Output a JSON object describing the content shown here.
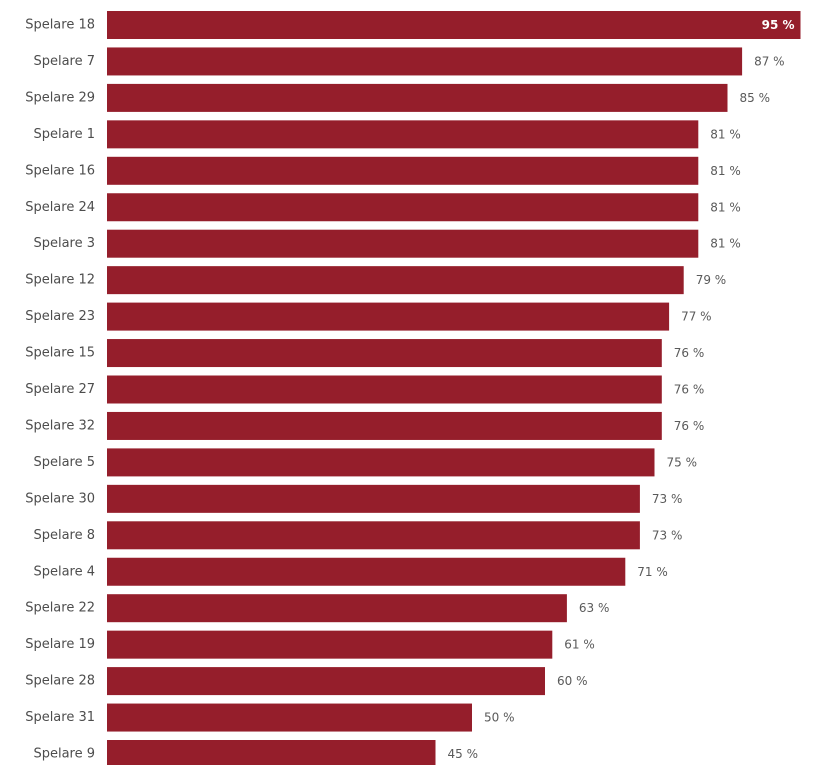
{
  "chart_data": {
    "type": "bar",
    "orientation": "horizontal",
    "categories": [
      "Spelare 18",
      "Spelare 7",
      "Spelare 29",
      "Spelare 1",
      "Spelare 16",
      "Spelare 24",
      "Spelare 3",
      "Spelare 12",
      "Spelare 23",
      "Spelare 15",
      "Spelare 27",
      "Spelare 32",
      "Spelare 5",
      "Spelare 30",
      "Spelare 8",
      "Spelare 4",
      "Spelare 22",
      "Spelare 19",
      "Spelare 28",
      "Spelare 31",
      "Spelare 9"
    ],
    "values": [
      95,
      87,
      85,
      81,
      81,
      81,
      81,
      79,
      77,
      76,
      76,
      76,
      75,
      73,
      73,
      71,
      63,
      61,
      60,
      50,
      45
    ],
    "value_labels": [
      "95 %",
      "87 %",
      "85 %",
      "81 %",
      "81 %",
      "81 %",
      "81 %",
      "79 %",
      "77 %",
      "76 %",
      "76 %",
      "76 %",
      "75 %",
      "73 %",
      "73 %",
      "71 %",
      "63 %",
      "61 %",
      "60 %",
      "50 %",
      "45 %"
    ],
    "unit": "%",
    "xlim": [
      0,
      100
    ],
    "grid": false,
    "legend": "none",
    "bar_color": "#951e2b"
  }
}
